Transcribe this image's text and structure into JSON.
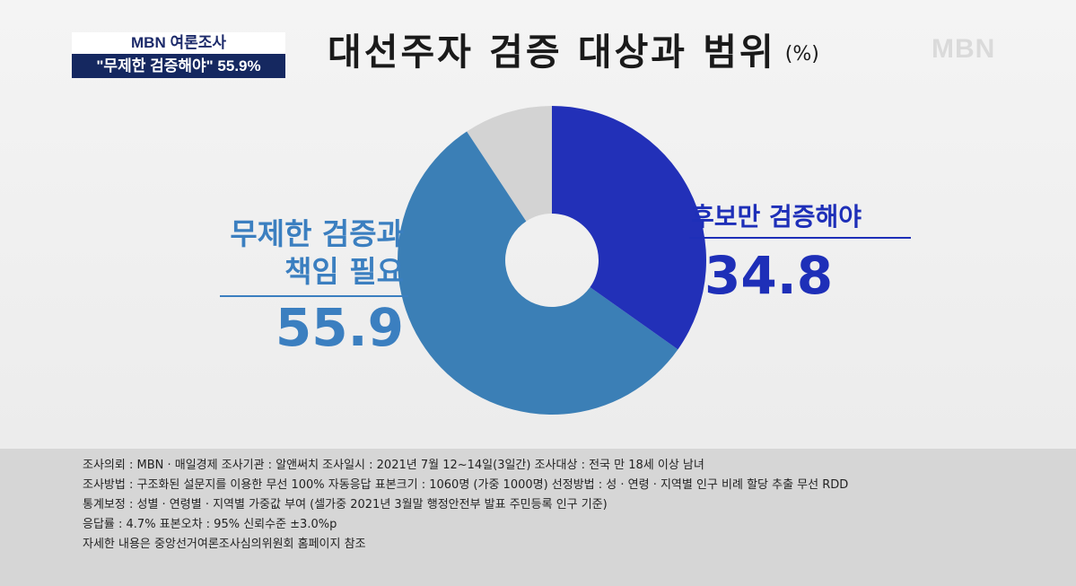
{
  "tag": {
    "top": "MBN 여론조사",
    "bottom": "\"무제한 검증해야\" 55.9%"
  },
  "title": "대선주자 검증 대상과 범위",
  "title_unit": "(%)",
  "logo": "MBN",
  "chart_data": {
    "type": "pie",
    "donut": true,
    "title": "대선주자 검증 대상과 범위",
    "unit": "(%)",
    "slices": [
      {
        "label": "후보만 검증해야",
        "value": 34.8,
        "color": "#2230b8",
        "display": "34.8"
      },
      {
        "label": "무제한 검증과 책임 필요",
        "value": 55.9,
        "color": "#3b7fb6",
        "display": "55.9"
      },
      {
        "label": "",
        "value": 9.3,
        "color": "#d3d3d3",
        "display": ""
      }
    ]
  },
  "labels": {
    "left_name_line1": "무제한 검증과",
    "left_name_line2": "책임 필요",
    "left_value": "55.9",
    "right_name": "후보만 검증해야",
    "right_value": "34.8"
  },
  "notes": [
    "조사의뢰 : MBN · 매일경제     조사기관 : 알앤써치     조사일시 : 2021년 7월 12~14일(3일간)     조사대상 : 전국 만 18세 이상 남녀",
    "조사방법 : 구조화된 설문지를 이용한 무선 100% 자동응답     표본크기 : 1060명 (가중 1000명)     선정방법 : 성 · 연령 · 지역별 인구 비례 할당 추출 무선 RDD",
    "통계보정 : 성별 · 연령별 · 지역별 가중값 부여 (셀가중 2021년 3월말 행정안전부 발표 주민등록 인구 기준)",
    "응답률 : 4.7%     표본오차 : 95% 신뢰수준 ±3.0%p",
    "자세한 내용은 중앙선거여론조사심의위원회 홈페이지 참조"
  ]
}
